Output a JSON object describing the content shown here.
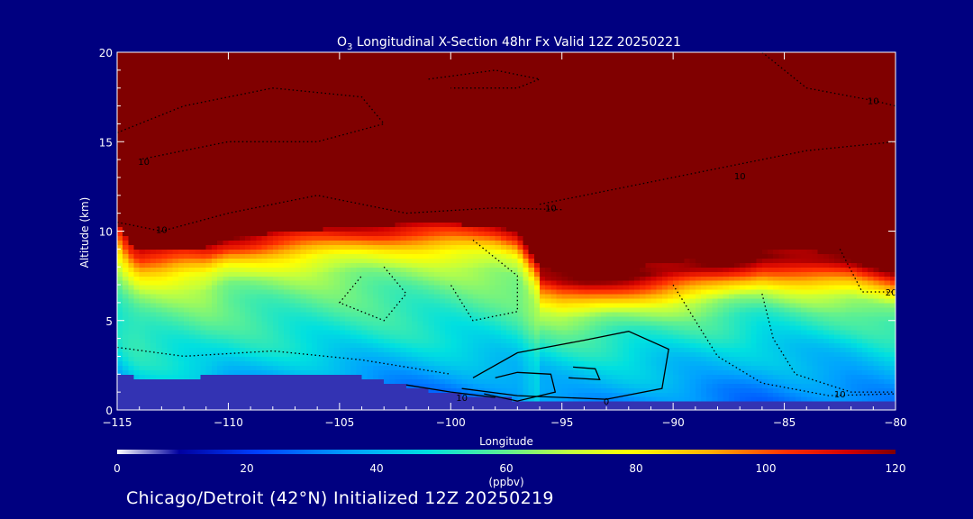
{
  "chart_data": {
    "type": "heatmap",
    "title_prefix": "O",
    "title_sub": "3",
    "title_rest": " Longitudinal X-Section 48hr  Fx Valid 12Z 20250221",
    "xlabel": "Longitude",
    "ylabel": "Altitude (km)",
    "xlim": [
      -115,
      -80
    ],
    "ylim": [
      0,
      20
    ],
    "x_ticks": [
      -115,
      -110,
      -105,
      -100,
      -95,
      -90,
      -85,
      -80
    ],
    "x_tick_labels": [
      "−115",
      "−110",
      "−105",
      "−100",
      "−95",
      "−90",
      "−85",
      "−80"
    ],
    "y_ticks": [
      0,
      5,
      10,
      15,
      20
    ],
    "y_tick_labels": [
      "0",
      "5",
      "10",
      "15",
      "20"
    ],
    "colorbar": {
      "min": 0,
      "max": 120,
      "ticks": [
        0,
        20,
        40,
        60,
        80,
        100,
        120
      ],
      "tick_labels": [
        "0",
        "20",
        "40",
        "60",
        "80",
        "100",
        "120"
      ],
      "unit_label": "(ppbv)"
    },
    "tropopause_altitude_km": {
      "longitude": [
        -115,
        -114.5,
        -114,
        -113,
        -112,
        -111,
        -110,
        -108,
        -106,
        -104,
        -102,
        -100,
        -98,
        -97,
        -96.5,
        -96,
        -95,
        -94,
        -92,
        -90,
        -88,
        -86,
        -84,
        -82,
        -80
      ],
      "altitude": [
        10.5,
        9.5,
        9.0,
        9.0,
        9.1,
        9.1,
        9.6,
        9.9,
        10.1,
        10.3,
        10.4,
        10.4,
        10.3,
        10.0,
        9.0,
        8.0,
        7.7,
        7.7,
        8.0,
        8.3,
        8.6,
        9.1,
        8.9,
        8.8,
        8.3
      ]
    },
    "terrain_altitude_km": {
      "longitude": [
        -115,
        -112,
        -110,
        -107,
        -105,
        -103,
        -101,
        -99,
        -97,
        -96,
        -95,
        -90,
        -85,
        -80
      ],
      "altitude": [
        1.9,
        1.8,
        2.0,
        2.0,
        2.1,
        1.6,
        1.1,
        0.8,
        0.6,
        0.5,
        0.4,
        0.4,
        0.4,
        0.4
      ]
    },
    "ozone_profile_ppbv": {
      "altitude_km": [
        0,
        1,
        2,
        3,
        4,
        5,
        6,
        7,
        8,
        9,
        10,
        11,
        15,
        20
      ],
      "west_of_-96": [
        22,
        30,
        36,
        42,
        48,
        52,
        56,
        60,
        66,
        80,
        105,
        120,
        120,
        120
      ],
      "east_of_-96": [
        28,
        28,
        30,
        34,
        40,
        44,
        50,
        56,
        68,
        95,
        120,
        120,
        120,
        120
      ]
    },
    "contour_labels": [
      {
        "lon": -113.8,
        "alt": 13.9,
        "text": "10"
      },
      {
        "lon": -113.0,
        "alt": 10.1,
        "text": "10"
      },
      {
        "lon": -95.5,
        "alt": 11.3,
        "text": "10"
      },
      {
        "lon": -87.0,
        "alt": 13.1,
        "text": "10"
      },
      {
        "lon": -81.0,
        "alt": 17.3,
        "text": "10"
      },
      {
        "lon": -80.2,
        "alt": 6.6,
        "text": "20"
      },
      {
        "lon": -99.5,
        "alt": 0.7,
        "text": "10"
      },
      {
        "lon": -82.5,
        "alt": 0.9,
        "text": "10"
      },
      {
        "lon": -93.0,
        "alt": 0.5,
        "text": "0"
      }
    ]
  },
  "footer": {
    "caption": "Chicago/Detroit (42°N) Initialized 12Z 20250219"
  },
  "colors": {
    "background": "#000080",
    "stratosphere": "#800000",
    "text": "#ffffff"
  }
}
